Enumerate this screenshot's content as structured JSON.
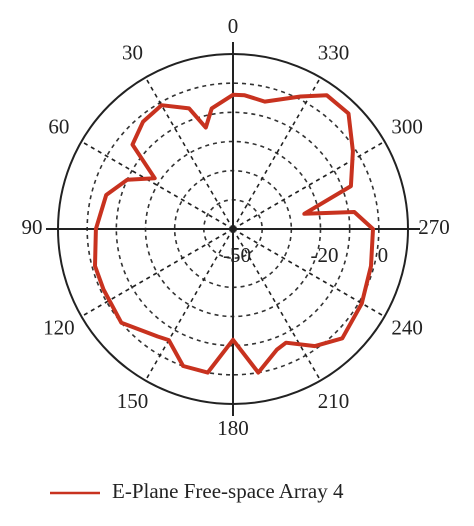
{
  "chart_data": {
    "type": "polar",
    "theta_direction": "counterclockwise",
    "theta_zero": "top",
    "thetaticks": [
      0,
      30,
      60,
      90,
      120,
      150,
      180,
      210,
      240,
      270,
      300,
      330
    ],
    "rlim": [
      -50,
      10
    ],
    "rticks": [
      -50,
      -20,
      0
    ],
    "rgrid": [
      -40,
      -30,
      -20,
      -10,
      0
    ],
    "series": [
      {
        "name": "E-Plane Free-space Array 4",
        "color": "#c8321f",
        "theta": [
          0,
          10,
          15,
          20,
          30,
          40,
          50,
          57,
          65,
          75,
          90,
          105,
          115,
          130,
          145,
          150,
          160,
          170,
          180,
          190,
          200,
          205,
          215,
          225,
          240,
          255,
          270,
          278,
          282,
          290,
          303,
          315,
          325,
          333,
          346,
          355
        ],
        "values": [
          -4,
          -8,
          -14,
          -6,
          -1,
          -2,
          -5,
          -18,
          -10,
          -5,
          -3,
          -1,
          -1,
          0,
          -5,
          -6,
          0,
          0,
          -12,
          0,
          -6,
          -7,
          -1,
          3,
          1,
          -1,
          -2,
          -8,
          -25,
          -7,
          -1,
          6,
          6,
          1,
          -5,
          -4
        ]
      }
    ],
    "legend": "bottom"
  }
}
